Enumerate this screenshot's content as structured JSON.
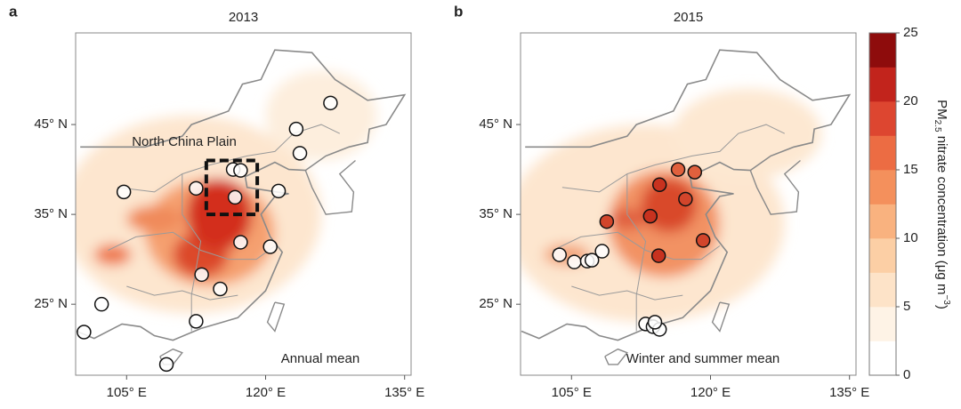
{
  "map": {
    "lonlim": [
      99.5,
      135.7
    ],
    "latlim": [
      17.1,
      55.2
    ],
    "lonticks": [
      {
        "value": 105,
        "label": "105° E"
      },
      {
        "value": 120,
        "label": "120° E"
      },
      {
        "value": 135,
        "label": "135° E"
      }
    ],
    "latticks": [
      {
        "value": 45,
        "label": "45° N"
      },
      {
        "value": 35,
        "label": "35° N"
      },
      {
        "value": 25,
        "label": "25° N"
      }
    ]
  },
  "panels": [
    {
      "label": "a",
      "title": "2013",
      "annotation": "Annual mean",
      "region_label": "North China Plain",
      "region_box": {
        "lon": [
          113.6,
          119.1
        ],
        "lat": [
          35,
          41
        ]
      },
      "sites": [
        {
          "lon": 127.0,
          "lat": 47.4
        },
        {
          "lon": 123.3,
          "lat": 44.5
        },
        {
          "lon": 123.7,
          "lat": 41.8
        },
        {
          "lon": 104.7,
          "lat": 37.5
        },
        {
          "lon": 112.5,
          "lat": 37.9
        },
        {
          "lon": 116.5,
          "lat": 40.0
        },
        {
          "lon": 117.3,
          "lat": 39.9
        },
        {
          "lon": 116.7,
          "lat": 36.9
        },
        {
          "lon": 121.4,
          "lat": 37.6
        },
        {
          "lon": 117.3,
          "lat": 31.9
        },
        {
          "lon": 120.5,
          "lat": 31.4
        },
        {
          "lon": 113.1,
          "lat": 28.3
        },
        {
          "lon": 115.1,
          "lat": 26.7
        },
        {
          "lon": 112.5,
          "lat": 23.1
        },
        {
          "lon": 102.3,
          "lat": 25.0
        },
        {
          "lon": 100.4,
          "lat": 21.9
        },
        {
          "lon": 109.3,
          "lat": 18.3
        }
      ]
    },
    {
      "label": "b",
      "title": "2015",
      "annotation": "Winter and summer mean",
      "sites": [
        {
          "lon": 103.7,
          "lat": 30.5
        },
        {
          "lon": 105.3,
          "lat": 29.7
        },
        {
          "lon": 106.7,
          "lat": 29.8
        },
        {
          "lon": 107.2,
          "lat": 29.9
        },
        {
          "lon": 108.3,
          "lat": 30.9
        },
        {
          "lon": 108.8,
          "lat": 34.2,
          "color": "#d2452b"
        },
        {
          "lon": 114.5,
          "lat": 38.3,
          "color": "#c8321f"
        },
        {
          "lon": 116.5,
          "lat": 40.0,
          "color": "#e0603d"
        },
        {
          "lon": 118.3,
          "lat": 39.7,
          "color": "#e0603d"
        },
        {
          "lon": 117.3,
          "lat": 36.7,
          "color": "#d2452b"
        },
        {
          "lon": 113.5,
          "lat": 34.8,
          "color": "#c8321f"
        },
        {
          "lon": 114.4,
          "lat": 30.4,
          "color": "#c8321f"
        },
        {
          "lon": 119.2,
          "lat": 32.1,
          "color": "#d2452b"
        },
        {
          "lon": 113.0,
          "lat": 22.8
        },
        {
          "lon": 113.8,
          "lat": 22.5
        },
        {
          "lon": 114.5,
          "lat": 22.2
        },
        {
          "lon": 114.0,
          "lat": 23.0
        }
      ]
    }
  ],
  "colorbar": {
    "lim": [
      0,
      25
    ],
    "ticks": [
      0,
      5,
      10,
      15,
      20,
      25
    ],
    "colors": [
      "#ffffff",
      "#fef3e6",
      "#fde3c8",
      "#fccfa5",
      "#f9b27f",
      "#f4905c",
      "#ec6c43",
      "#dd4630",
      "#c2241c",
      "#8e0c0c"
    ],
    "label": {
      "main": "PM",
      "sub": "2.5",
      "rest": " nitrate concentration (μg m",
      "sup": "−3",
      "end": ")"
    }
  }
}
